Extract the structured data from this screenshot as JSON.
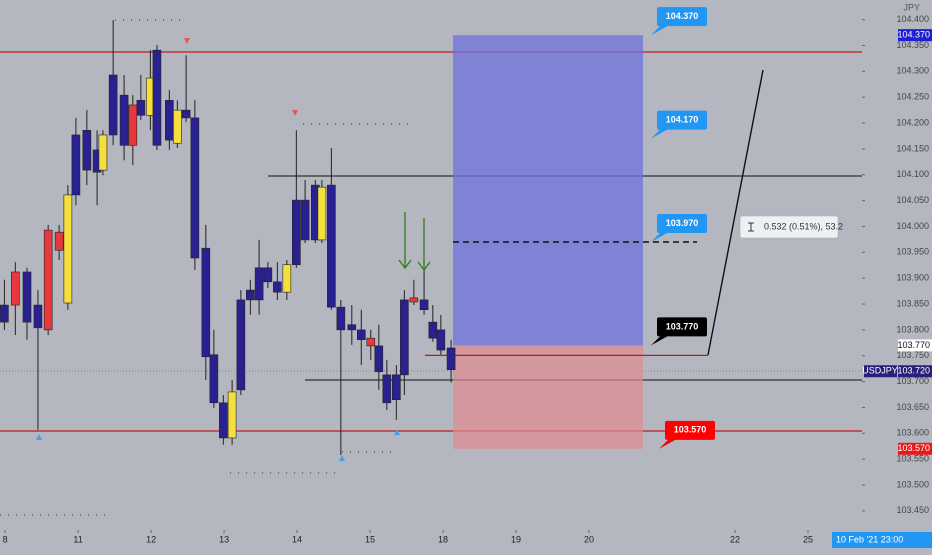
{
  "chart_data": {
    "type": "candlestick",
    "symbol": "USDJPY",
    "currency": "JPY",
    "x": [
      -0.01,
      0.14,
      0.3,
      0.45,
      0.59,
      0.74,
      0.86,
      0.97,
      1.12,
      1.26,
      1.34,
      1.48,
      1.63,
      1.75,
      1.86,
      1.99,
      2.08,
      2.25,
      2.36,
      2.48,
      2.6,
      2.75,
      2.86,
      2.99,
      3.11,
      3.23,
      3.36,
      3.48,
      3.6,
      3.73,
      3.86,
      3.99,
      4.11,
      4.25,
      4.34,
      4.47,
      4.6,
      4.75,
      4.88,
      5.01,
      5.12,
      5.23,
      5.36,
      5.47,
      5.6,
      5.74,
      5.86,
      5.97,
      6.11
    ],
    "open": [
      103.848,
      103.848,
      103.912,
      103.848,
      103.8,
      103.954,
      103.852,
      104.177,
      104.186,
      104.148,
      104.109,
      104.293,
      104.254,
      104.157,
      104.244,
      104.215,
      104.341,
      104.244,
      104.161,
      104.225,
      104.21,
      103.958,
      103.752,
      103.659,
      103.591,
      103.858,
      103.877,
      103.92,
      103.92,
      103.893,
      103.873,
      104.051,
      104.051,
      104.08,
      103.974,
      104.08,
      103.844,
      103.81,
      103.8,
      103.769,
      103.769,
      103.713,
      103.713,
      103.858,
      103.854,
      103.858,
      103.815,
      103.8,
      103.765
    ],
    "high": [
      103.897,
      103.931,
      103.92,
      103.877,
      104.003,
      104.003,
      104.08,
      104.21,
      104.225,
      104.186,
      104.186,
      104.399,
      104.293,
      104.254,
      104.293,
      104.341,
      104.351,
      104.264,
      104.244,
      104.331,
      104.244,
      104.003,
      103.8,
      103.674,
      103.703,
      103.877,
      103.897,
      103.974,
      103.931,
      103.931,
      103.935,
      104.186,
      104.09,
      104.09,
      104.09,
      104.152,
      103.858,
      103.848,
      103.839,
      103.8,
      103.81,
      103.742,
      103.732,
      103.877,
      103.897,
      103.916,
      103.848,
      103.829,
      103.781
    ],
    "low": [
      103.8,
      103.79,
      103.781,
      103.607,
      103.79,
      103.935,
      103.839,
      104.041,
      104.08,
      104.041,
      104.099,
      104.157,
      104.128,
      104.119,
      104.206,
      104.186,
      104.148,
      104.148,
      104.152,
      104.202,
      103.916,
      103.703,
      103.649,
      103.578,
      103.578,
      103.674,
      103.829,
      103.829,
      103.881,
      103.858,
      103.858,
      103.92,
      103.968,
      103.968,
      103.968,
      103.839,
      103.558,
      103.771,
      103.732,
      103.742,
      103.684,
      103.645,
      103.626,
      103.674,
      103.848,
      103.829,
      103.777,
      103.752,
      103.698
    ],
    "close": [
      103.815,
      103.912,
      103.815,
      103.804,
      103.993,
      103.989,
      104.061,
      104.061,
      104.109,
      104.105,
      104.177,
      104.177,
      104.157,
      104.235,
      104.215,
      104.287,
      104.157,
      104.167,
      104.225,
      104.21,
      103.939,
      103.748,
      103.659,
      103.591,
      103.68,
      103.684,
      103.858,
      103.858,
      103.893,
      103.873,
      103.926,
      103.926,
      103.974,
      103.974,
      104.076,
      103.844,
      103.8,
      103.8,
      103.781,
      103.784,
      103.719,
      103.659,
      103.665,
      103.713,
      103.862,
      103.839,
      103.784,
      103.761,
      103.723
    ],
    "colors": [
      "#2a2190",
      "#e8383d",
      "#2a2190",
      "#2a2190",
      "#e8383d",
      "#e8383d",
      "#f5df3c",
      "#2a2190",
      "#2a2190",
      "#2a2190",
      "#f5df3c",
      "#2a2190",
      "#2a2190",
      "#e8383d",
      "#2a2190",
      "#f5df3c",
      "#2a2190",
      "#2a2190",
      "#f5df3c",
      "#2a2190",
      "#2a2190",
      "#2a2190",
      "#2a2190",
      "#2a2190",
      "#f5df3c",
      "#2a2190",
      "#2a2190",
      "#2a2190",
      "#2a2190",
      "#2a2190",
      "#f5df3c",
      "#2a2190",
      "#2a2190",
      "#2a2190",
      "#f5df3c",
      "#2a2190",
      "#2a2190",
      "#2a2190",
      "#2a2190",
      "#e8383d",
      "#2a2190",
      "#2a2190",
      "#2a2190",
      "#2a2190",
      "#e8383d",
      "#2a2190",
      "#2a2190",
      "#2a2190",
      "#2a2190"
    ],
    "xlim": [
      -0.07,
      11.74
    ],
    "ylim": [
      103.413,
      104.438
    ],
    "xticks": [
      {
        "value": 0,
        "label": "8"
      },
      {
        "value": 1,
        "label": "11"
      },
      {
        "value": 2,
        "label": "12"
      },
      {
        "value": 3,
        "label": "13"
      },
      {
        "value": 4,
        "label": "14"
      },
      {
        "value": 5,
        "label": "15"
      },
      {
        "value": 6,
        "label": "18"
      },
      {
        "value": 7,
        "label": "19"
      },
      {
        "value": 8,
        "label": "20"
      },
      {
        "value": 10,
        "label": "22"
      },
      {
        "value": 11,
        "label": "25"
      }
    ],
    "yticks": [
      {
        "value": 103.45,
        "label": "103.450"
      },
      {
        "value": 103.5,
        "label": "103.500"
      },
      {
        "value": 103.55,
        "label": "103.550"
      },
      {
        "value": 103.6,
        "label": "103.600"
      },
      {
        "value": 103.65,
        "label": "103.650"
      },
      {
        "value": 103.7,
        "label": "103.700"
      },
      {
        "value": 103.75,
        "label": "103.750"
      },
      {
        "value": 103.8,
        "label": "103.800"
      },
      {
        "value": 103.85,
        "label": "103.850"
      },
      {
        "value": 103.9,
        "label": "103.900"
      },
      {
        "value": 103.95,
        "label": "103.950"
      },
      {
        "value": 104.0,
        "label": "104.000"
      },
      {
        "value": 104.05,
        "label": "104.050"
      },
      {
        "value": 104.1,
        "label": "104.100"
      },
      {
        "value": 104.15,
        "label": "104.150"
      },
      {
        "value": 104.2,
        "label": "104.200"
      },
      {
        "value": 104.25,
        "label": "104.250"
      },
      {
        "value": 104.3,
        "label": "104.300"
      },
      {
        "value": 104.35,
        "label": "104.350"
      },
      {
        "value": 104.4,
        "label": "104.400"
      }
    ],
    "callouts": [
      {
        "value": 104.37,
        "label": "104.370",
        "color": "#2196f3"
      },
      {
        "value": 104.17,
        "label": "104.170",
        "color": "#2196f3"
      },
      {
        "value": 103.97,
        "label": "103.970",
        "color": "#2196f3"
      },
      {
        "value": 103.77,
        "label": "103.770",
        "color": "#000000"
      },
      {
        "value": 103.57,
        "label": "103.570",
        "color": "#ff0000"
      }
    ],
    "last_price": {
      "value": 103.72,
      "label": "103.720"
    },
    "measure": "0.532 (0.51%), 53.2",
    "crosshair_time": "10 Feb '21  23:00"
  }
}
